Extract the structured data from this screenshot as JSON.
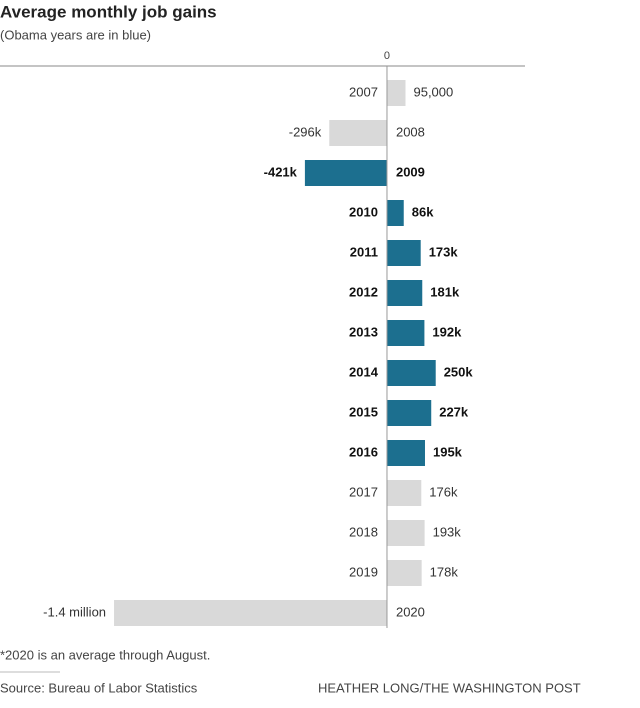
{
  "chart_data": {
    "type": "hbar",
    "title": "Average monthly job gains",
    "subtitle": "(Obama years are in blue)",
    "categories": [
      "2007",
      "2008",
      "2009",
      "2010",
      "2011",
      "2012",
      "2013",
      "2014",
      "2015",
      "2016",
      "2017",
      "2018",
      "2019",
      "2020"
    ],
    "values": [
      95000,
      -296000,
      -421000,
      86000,
      173000,
      181000,
      192000,
      250000,
      227000,
      195000,
      176000,
      193000,
      178000,
      -1400000
    ],
    "value_labels": [
      "95,000",
      "-296k",
      "-421k",
      "86k",
      "173k",
      "181k",
      "192k",
      "250k",
      "227k",
      "195k",
      "176k",
      "193k",
      "178k",
      "-1.4 million"
    ],
    "colors": [
      "#d9d9d9",
      "#d9d9d9",
      "#1c6f8f",
      "#1c6f8f",
      "#1c6f8f",
      "#1c6f8f",
      "#1c6f8f",
      "#1c6f8f",
      "#1c6f8f",
      "#1c6f8f",
      "#d9d9d9",
      "#d9d9d9",
      "#d9d9d9",
      "#d9d9d9"
    ],
    "bold": [
      false,
      false,
      true,
      true,
      true,
      true,
      true,
      true,
      true,
      true,
      false,
      false,
      false,
      false
    ],
    "xlim": [
      -1985000,
      708000
    ],
    "xticks": [
      0
    ],
    "note": "*2020 is an average through August.",
    "source": "Source: Bureau of Labor Statistics",
    "credit": "HEATHER LONG/THE WASHINGTON POST"
  }
}
